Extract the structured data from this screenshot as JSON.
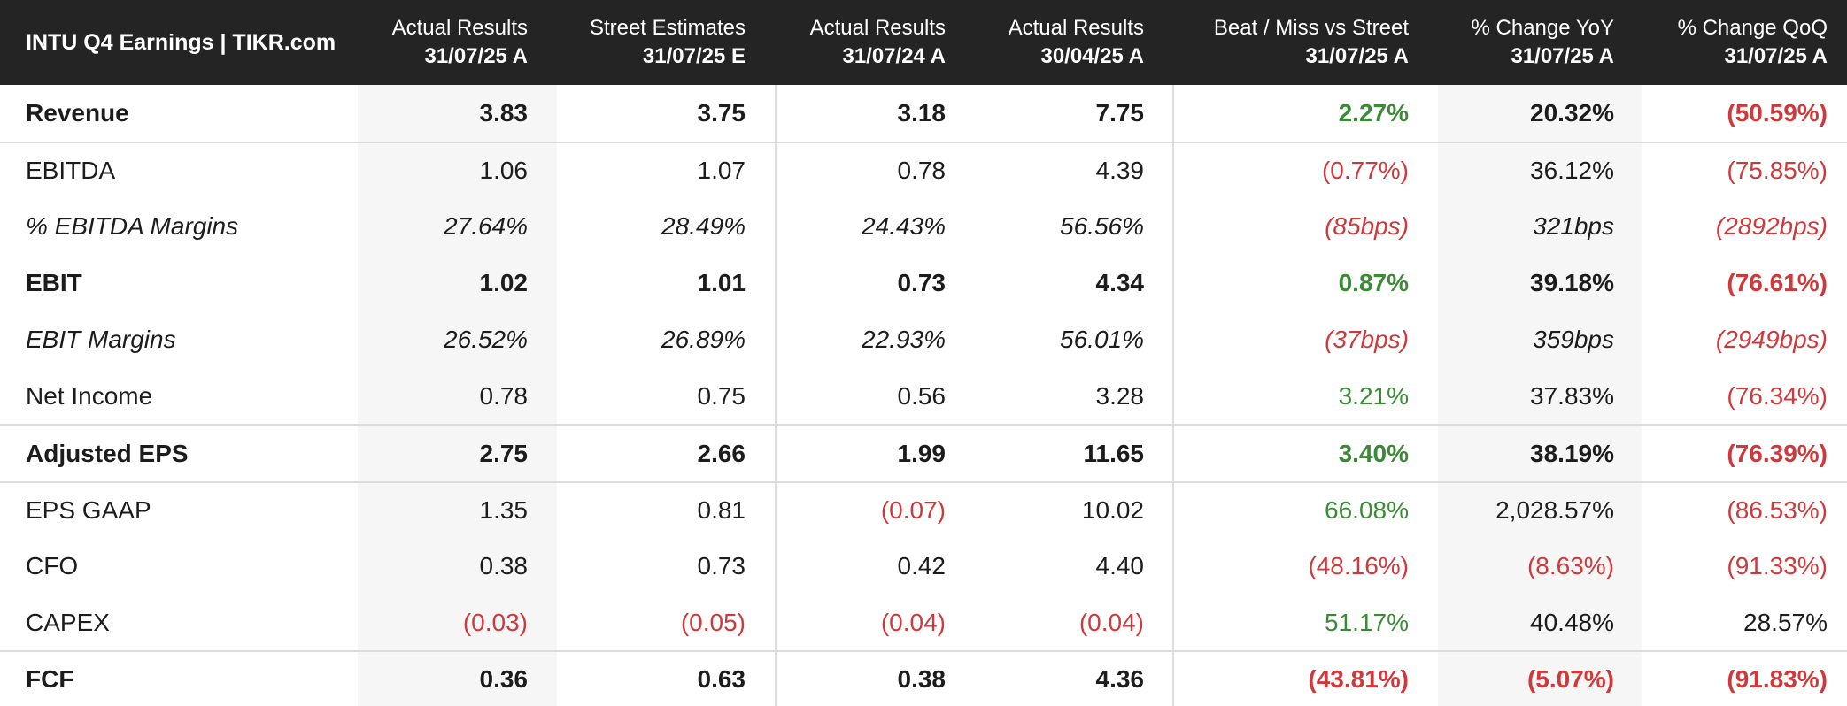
{
  "title": "INTU Q4 Earnings | TIKR.com",
  "columns": [
    {
      "line1": "Actual Results",
      "line2": "31/07/25 A"
    },
    {
      "line1": "Street Estimates",
      "line2": "31/07/25 E"
    },
    {
      "line1": "Actual Results",
      "line2": "31/07/24 A"
    },
    {
      "line1": "Actual Results",
      "line2": "30/04/25 A"
    },
    {
      "line1": "Beat / Miss vs Street",
      "line2": "31/07/25 A"
    },
    {
      "line1": "% Change YoY",
      "line2": "31/07/25 A"
    },
    {
      "line1": "% Change QoQ",
      "line2": "31/07/25 A"
    }
  ],
  "rows": [
    {
      "label": "Revenue",
      "style": "bold",
      "values": [
        "3.83",
        "3.75",
        "3.18",
        "7.75",
        "2.27%",
        "20.32%",
        "(50.59%)"
      ],
      "tones": [
        "",
        "",
        "",
        "",
        "pos",
        "",
        "neg"
      ]
    },
    {
      "label": "EBITDA",
      "style": "normal",
      "values": [
        "1.06",
        "1.07",
        "0.78",
        "4.39",
        "(0.77%)",
        "36.12%",
        "(75.85%)"
      ],
      "tones": [
        "",
        "",
        "",
        "",
        "neg",
        "",
        "neg"
      ]
    },
    {
      "label": "% EBITDA Margins",
      "style": "italic",
      "values": [
        "27.64%",
        "28.49%",
        "24.43%",
        "56.56%",
        "(85bps)",
        "321bps",
        "(2892bps)"
      ],
      "tones": [
        "",
        "",
        "",
        "",
        "neg",
        "",
        "neg"
      ]
    },
    {
      "label": "EBIT",
      "style": "bold",
      "values": [
        "1.02",
        "1.01",
        "0.73",
        "4.34",
        "0.87%",
        "39.18%",
        "(76.61%)"
      ],
      "tones": [
        "",
        "",
        "",
        "",
        "pos",
        "",
        "neg"
      ]
    },
    {
      "label": "EBIT Margins",
      "style": "italic",
      "values": [
        "26.52%",
        "26.89%",
        "22.93%",
        "56.01%",
        "(37bps)",
        "359bps",
        "(2949bps)"
      ],
      "tones": [
        "",
        "",
        "",
        "",
        "neg",
        "",
        "neg"
      ]
    },
    {
      "label": "Net Income",
      "style": "normal",
      "values": [
        "0.78",
        "0.75",
        "0.56",
        "3.28",
        "3.21%",
        "37.83%",
        "(76.34%)"
      ],
      "tones": [
        "",
        "",
        "",
        "",
        "pos",
        "",
        "neg"
      ]
    },
    {
      "label": "Adjusted EPS",
      "style": "bold",
      "values": [
        "2.75",
        "2.66",
        "1.99",
        "11.65",
        "3.40%",
        "38.19%",
        "(76.39%)"
      ],
      "tones": [
        "",
        "",
        "",
        "",
        "pos",
        "",
        "neg"
      ]
    },
    {
      "label": "EPS GAAP",
      "style": "normal",
      "values": [
        "1.35",
        "0.81",
        "(0.07)",
        "10.02",
        "66.08%",
        "2,028.57%",
        "(86.53%)"
      ],
      "tones": [
        "",
        "",
        "neg",
        "",
        "pos",
        "",
        "neg"
      ]
    },
    {
      "label": "CFO",
      "style": "normal",
      "values": [
        "0.38",
        "0.73",
        "0.42",
        "4.40",
        "(48.16%)",
        "(8.63%)",
        "(91.33%)"
      ],
      "tones": [
        "",
        "",
        "",
        "",
        "neg",
        "neg",
        "neg"
      ]
    },
    {
      "label": "CAPEX",
      "style": "normal",
      "values": [
        "(0.03)",
        "(0.05)",
        "(0.04)",
        "(0.04)",
        "51.17%",
        "40.48%",
        "28.57%"
      ],
      "tones": [
        "neg",
        "neg",
        "neg",
        "neg",
        "pos",
        "",
        ""
      ]
    },
    {
      "label": "FCF",
      "style": "bold",
      "values": [
        "0.36",
        "0.63",
        "0.38",
        "4.36",
        "(43.81%)",
        "(5.07%)",
        "(91.83%)"
      ],
      "tones": [
        "",
        "",
        "",
        "",
        "neg",
        "neg",
        "neg"
      ]
    }
  ],
  "colors": {
    "header_bg": "#242424",
    "positive": "#3b8a36",
    "negative": "#d0393b",
    "shade": "#f6f6f6"
  }
}
